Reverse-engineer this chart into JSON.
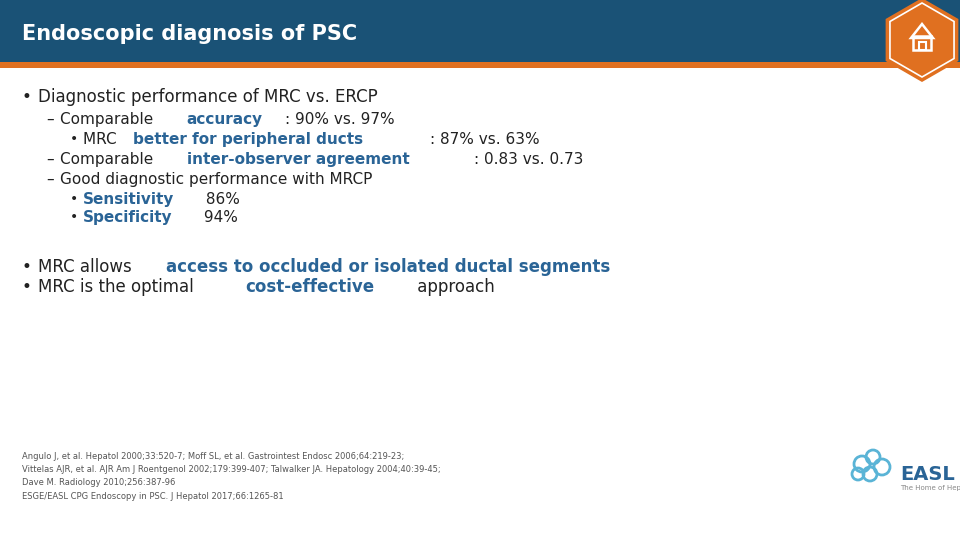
{
  "title": "Endoscopic diagnosis of PSC",
  "title_bg_color": "#1a5276",
  "title_text_color": "#ffffff",
  "orange_accent_color": "#e07020",
  "background_color": "#ffffff",
  "body_text_color": "#222222",
  "blue_highlight_color": "#2a6496",
  "bullet1_text": "Diagnostic performance of MRC vs. ERCP",
  "sub3_text": "Good diagnostic performance with MRCP",
  "bullet2_pre": "MRC allows ",
  "bullet2_highlight": "access to occluded or isolated ductal segments",
  "bullet3_pre": "MRC is the optimal ",
  "bullet3_highlight": "cost-effective",
  "bullet3_post": " approach",
  "footnote": "Angulo J, et al. Hepatol 2000;33:520-7; Moff SL, et al. Gastrointest Endosc 2006;64:219-23;\nVittelas AJR, et al. AJR Am J Roentgenol 2002;179:399-407; Talwalker JA. Hepatology 2004;40:39-45;\nDave M. Radiology 2010;256:387-96\nESGE/EASL CPG Endoscopy in PSC. J Hepatol 2017;66:1265-81"
}
